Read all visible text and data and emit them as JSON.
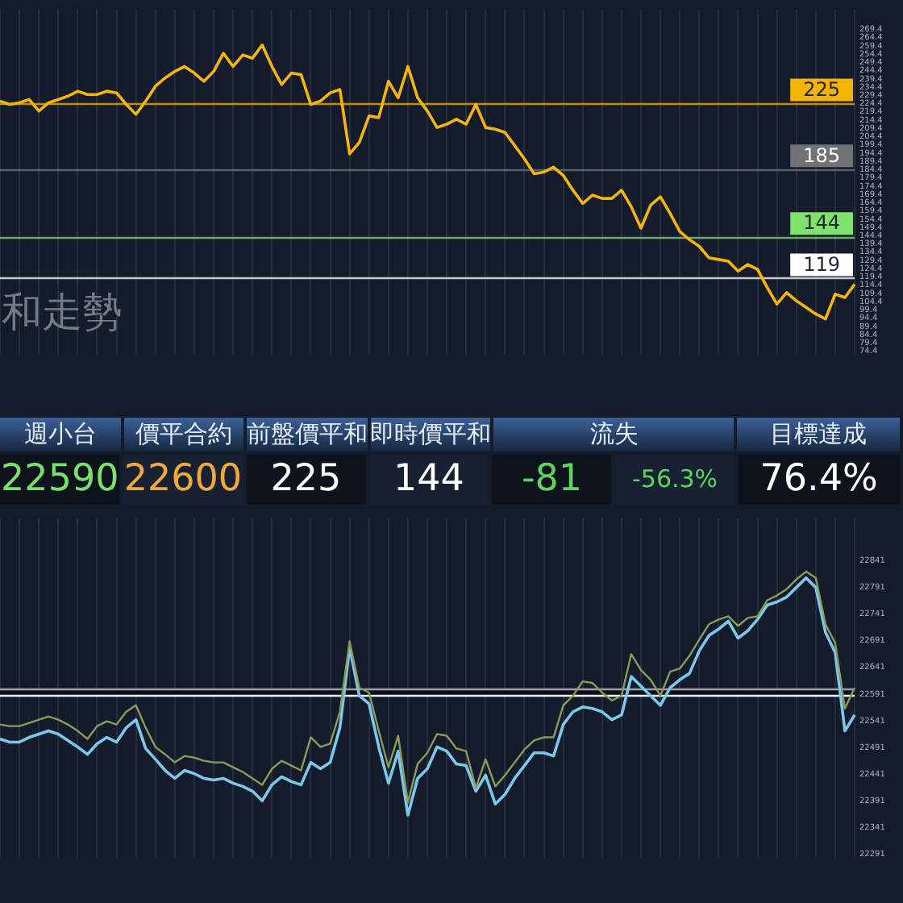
{
  "chart_data": [
    {
      "type": "line",
      "annotations": [
        "和走勢"
      ],
      "categories": [
        null,
        null,
        null,
        null,
        null,
        null,
        null,
        null,
        null,
        null,
        null,
        null,
        null,
        null,
        null,
        null,
        null,
        null,
        null,
        null,
        null,
        null,
        null,
        null,
        null,
        null,
        null,
        null,
        null,
        null,
        null,
        null,
        null,
        null,
        null,
        null,
        null,
        null,
        null,
        null,
        null,
        null,
        null,
        null,
        null,
        null,
        null,
        null,
        null,
        null,
        null,
        null,
        null,
        null,
        null,
        null,
        null,
        null,
        null,
        null,
        null,
        null,
        null,
        null,
        null,
        null,
        null,
        null,
        null,
        null,
        null,
        null,
        null,
        null,
        null,
        null,
        null,
        null,
        null,
        null,
        null,
        null,
        null,
        null,
        null,
        null,
        null,
        null,
        null
      ],
      "series": [
        {
          "color": "#f5b50a",
          "values": [
            226,
            224,
            225,
            227,
            220,
            225,
            227,
            229,
            232,
            230,
            230,
            232,
            231,
            224,
            218,
            226,
            235,
            240,
            244,
            247,
            243,
            238,
            244,
            255,
            247,
            254,
            252,
            260,
            247,
            236,
            243,
            242,
            224,
            226,
            231,
            233,
            194,
            201,
            217,
            216,
            238,
            228,
            247,
            228,
            220,
            210,
            212,
            215,
            212,
            224,
            210,
            209,
            207,
            199,
            191,
            182,
            183,
            186,
            181,
            172,
            164,
            169,
            167,
            167,
            172,
            162,
            149,
            163,
            168,
            158,
            147,
            142,
            138,
            131,
            130,
            129,
            123,
            127,
            124,
            113,
            103,
            110,
            105,
            101,
            97,
            94,
            109,
            107,
            115
          ]
        }
      ],
      "ylim": [
        72.3,
        281.4
      ],
      "yticks": [
        74.4,
        79.4,
        84.4,
        89.4,
        94.4,
        99.4,
        104.4,
        109.4,
        114.4,
        119.4,
        124.4,
        129.4,
        134.4,
        139.4,
        144.4,
        149.4,
        154.4,
        159.4,
        164.4,
        169.4,
        174.4,
        179.4,
        184.4,
        189.4,
        194.4,
        199.4,
        204.4,
        209.4,
        214.4,
        219.4,
        224.4,
        229.4,
        234.4,
        239.4,
        244.4,
        249.4,
        254.4,
        259.4,
        264.4,
        269.4
      ],
      "ref_lines": [
        {
          "axis": "y",
          "value": 225,
          "label": "225",
          "color": "#f5b400"
        },
        {
          "axis": "y",
          "value": 185,
          "label": "185",
          "color": "#707274"
        },
        {
          "axis": "y",
          "value": 144,
          "label": "144",
          "color": "#7ee26c"
        },
        {
          "axis": "y",
          "value": 119,
          "label": "119",
          "color": "#ffffff"
        }
      ],
      "grid": "x",
      "tick_labels": "y"
    },
    {
      "type": "other",
      "categories": [
        "週小台",
        "價平合約",
        "前盤價平和",
        "即時價平和",
        "流失",
        null,
        "目標達成"
      ],
      "value_labels": [
        "22590",
        "22600",
        "225",
        "144",
        "-81",
        "-56.3%",
        "76.4%"
      ],
      "colors": [
        "#79e06a",
        "#f2a93b",
        "#ffffff",
        "#ffffff",
        "#5ed35e",
        "#5ed35e",
        "#ffffff"
      ]
    },
    {
      "type": "line",
      "categories": [
        null,
        null,
        null,
        null,
        null,
        null,
        null,
        null,
        null,
        null,
        null,
        null,
        null,
        null,
        null,
        null,
        null,
        null,
        null,
        null,
        null,
        null,
        null,
        null,
        null,
        null,
        null,
        null,
        null,
        null,
        null,
        null,
        null,
        null,
        null,
        null,
        null,
        null,
        null,
        null,
        null,
        null,
        null,
        null,
        null,
        null,
        null,
        null,
        null,
        null,
        null,
        null,
        null,
        null,
        null,
        null,
        null,
        null,
        null,
        null,
        null,
        null,
        null,
        null,
        null,
        null,
        null,
        null,
        null,
        null,
        null,
        null,
        null,
        null,
        null,
        null,
        null,
        null,
        null,
        null,
        null,
        null,
        null,
        null,
        null,
        null,
        null,
        null,
        null
      ],
      "series": [
        {
          "color": "#8c9a5a",
          "values": [
            22534,
            22531,
            22531,
            22537,
            22543,
            22549,
            22543,
            22534,
            22522,
            22507,
            22531,
            22540,
            22534,
            22558,
            22570,
            22528,
            22492,
            22478,
            22463,
            22475,
            22472,
            22466,
            22463,
            22463,
            22454,
            22445,
            22433,
            22421,
            22451,
            22466,
            22457,
            22448,
            22510,
            22492,
            22498,
            22558,
            22690,
            22603,
            22594,
            22522,
            22454,
            22513,
            22388,
            22460,
            22481,
            22516,
            22513,
            22489,
            22484,
            22415,
            22469,
            22418,
            22439,
            22463,
            22487,
            22504,
            22510,
            22510,
            22570,
            22588,
            22615,
            22612,
            22594,
            22579,
            22588,
            22666,
            22636,
            22618,
            22588,
            22633,
            22639,
            22663,
            22693,
            22722,
            22731,
            22737,
            22719,
            22734,
            22737,
            22767,
            22776,
            22788,
            22806,
            22821,
            22809,
            22722,
            22687,
            22564,
            22603
          ]
        },
        {
          "color": "#7cc8ec",
          "values": [
            22507,
            22501,
            22501,
            22510,
            22516,
            22522,
            22516,
            22504,
            22492,
            22478,
            22498,
            22510,
            22501,
            22528,
            22543,
            22489,
            22469,
            22448,
            22433,
            22448,
            22442,
            22433,
            22430,
            22433,
            22424,
            22418,
            22409,
            22391,
            22421,
            22436,
            22427,
            22421,
            22463,
            22451,
            22463,
            22528,
            22678,
            22588,
            22573,
            22492,
            22424,
            22484,
            22364,
            22433,
            22451,
            22492,
            22484,
            22460,
            22457,
            22409,
            22439,
            22385,
            22403,
            22433,
            22457,
            22481,
            22481,
            22475,
            22534,
            22558,
            22567,
            22564,
            22558,
            22543,
            22552,
            22624,
            22606,
            22588,
            22570,
            22603,
            22618,
            22630,
            22672,
            22701,
            22713,
            22728,
            22696,
            22710,
            22731,
            22758,
            22764,
            22773,
            22791,
            22809,
            22791,
            22707,
            22669,
            22522,
            22552
          ]
        }
      ],
      "ylim": [
        22284,
        22922
      ],
      "yticks": [
        22291,
        22341,
        22391,
        22441,
        22491,
        22541,
        22591,
        22641,
        22691,
        22741,
        22791,
        22841
      ],
      "ref_lines": [
        {
          "axis": "y",
          "value": 22600,
          "color": "#9aa3ad"
        },
        {
          "axis": "y",
          "value": 22590,
          "color": "#e6edf3"
        }
      ],
      "bands": [
        {
          "axis": "y",
          "from": 22590,
          "to": 22600,
          "color": "#0b0f16"
        }
      ],
      "grid": "x",
      "tick_labels": "y"
    }
  ]
}
